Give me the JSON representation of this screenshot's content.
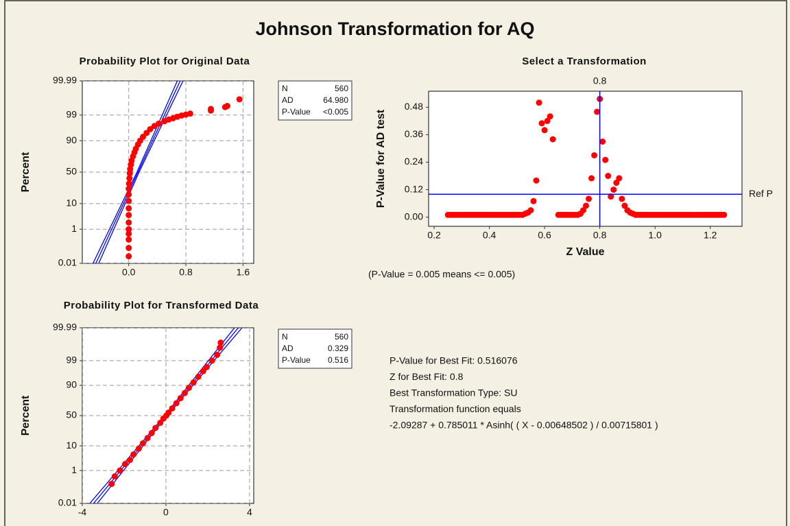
{
  "title": "Johnson Transformation for AQ",
  "chart_data": [
    {
      "type": "scatter",
      "title": "Probability Plot for Original Data",
      "ylabel": "Percent",
      "yscale": "probability",
      "grid": true,
      "xlim": [
        -0.65,
        1.75
      ],
      "ylim": [
        0.01,
        99.99
      ],
      "xticks": [
        {
          "value": 0,
          "label": "0.0"
        },
        0.8,
        1.6
      ],
      "yticks": [
        0.01,
        1,
        10,
        50,
        90,
        99,
        99.99
      ],
      "series": [
        {
          "color": "#ff0000",
          "x": [
            0,
            0,
            0,
            0,
            0,
            0,
            0,
            0,
            0,
            0,
            0,
            0.005,
            0.01,
            0.015,
            0.02,
            0.03,
            0.04,
            0.06,
            0.08,
            0.1,
            0.13,
            0.16,
            0.2,
            0.25,
            0.3,
            0.36,
            0.42,
            0.5,
            0.56,
            0.62,
            0.68,
            0.74,
            0.8,
            0.86,
            1.15,
            1.15,
            1.35,
            1.38,
            1.55
          ],
          "values": [
            0.03,
            0.1,
            0.3,
            0.6,
            1,
            2,
            4,
            7,
            12,
            18,
            25,
            32,
            40,
            48,
            55,
            62,
            68,
            74,
            79,
            83,
            87,
            90,
            92.5,
            94.5,
            96,
            97,
            97.6,
            98.1,
            98.4,
            98.6,
            98.8,
            98.95,
            99.05,
            99.15,
            99.4,
            99.5,
            99.6,
            99.65,
            99.85
          ]
        }
      ],
      "lines": [
        {
          "color": "#0000ff",
          "x": [
            -0.46,
            0.13,
            0.72
          ],
          "values": [
            0.01,
            50,
            99.99
          ]
        },
        {
          "color": "#0000ff",
          "x": [
            -0.42,
            0.145,
            0.76
          ],
          "values": [
            0.01,
            50,
            99.99
          ]
        },
        {
          "color": "#0000ff",
          "x": [
            -0.5,
            0.115,
            0.68
          ],
          "values": [
            0.01,
            50,
            99.99
          ]
        }
      ],
      "stats": [
        {
          "label": "N",
          "value": "560"
        },
        {
          "label": "AD",
          "value": "64.980"
        },
        {
          "label": "P-Value",
          "value": "<0.005"
        }
      ]
    },
    {
      "type": "scatter",
      "title": "Select a Transformation",
      "xlabel": "Z Value",
      "ylabel": "P-Value for AD test",
      "grid": false,
      "xlim": [
        0.18,
        1.315
      ],
      "ylim": [
        -0.04,
        0.55
      ],
      "xticks": [
        0.2,
        0.4,
        0.6,
        0.8,
        {
          "value": 1,
          "label": "1.0"
        },
        1.2
      ],
      "yticks": [
        {
          "value": 0,
          "label": "0.00"
        },
        0.12,
        0.24,
        0.36,
        0.48
      ],
      "ref_lines": [
        {
          "axis": "x",
          "value": 0.8,
          "color": "#0000ff"
        },
        {
          "axis": "y",
          "value": 0.1,
          "label": "Ref P",
          "color": "#0000ff"
        }
      ],
      "series": [
        {
          "color": "#ff0000",
          "x": [
            0.25,
            0.26,
            0.27,
            0.28,
            0.29,
            0.3,
            0.31,
            0.32,
            0.33,
            0.34,
            0.35,
            0.36,
            0.37,
            0.38,
            0.39,
            0.4,
            0.41,
            0.42,
            0.43,
            0.44,
            0.45,
            0.46,
            0.47,
            0.48,
            0.49,
            0.5,
            0.51,
            0.52,
            0.53,
            0.54,
            0.55,
            0.56,
            0.57,
            0.58,
            0.59,
            0.6,
            0.61,
            0.62,
            0.63,
            0.65,
            0.66,
            0.67,
            0.68,
            0.69,
            0.7,
            0.71,
            0.72,
            0.73,
            0.74,
            0.75,
            0.76,
            0.77,
            0.78,
            0.79,
            0.8,
            0.81,
            0.82,
            0.83,
            0.84,
            0.85,
            0.86,
            0.87,
            0.88,
            0.89,
            0.9,
            0.91,
            0.92,
            0.93,
            0.94,
            0.95,
            0.96,
            0.97,
            0.98,
            0.99,
            1,
            1.01,
            1.02,
            1.03,
            1.04,
            1.05,
            1.06,
            1.07,
            1.08,
            1.09,
            1.1,
            1.11,
            1.12,
            1.13,
            1.14,
            1.15,
            1.16,
            1.17,
            1.18,
            1.19,
            1.2,
            1.21,
            1.22,
            1.23,
            1.24,
            1.25
          ],
          "values": [
            0.01,
            0.01,
            0.01,
            0.01,
            0.01,
            0.01,
            0.01,
            0.01,
            0.01,
            0.01,
            0.01,
            0.01,
            0.01,
            0.01,
            0.01,
            0.01,
            0.01,
            0.01,
            0.01,
            0.01,
            0.01,
            0.01,
            0.01,
            0.01,
            0.01,
            0.01,
            0.01,
            0.01,
            0.015,
            0.02,
            0.03,
            0.07,
            0.16,
            0.5,
            0.41,
            0.38,
            0.42,
            0.44,
            0.34,
            0.01,
            0.01,
            0.01,
            0.01,
            0.01,
            0.01,
            0.01,
            0.01,
            0.015,
            0.03,
            0.05,
            0.08,
            0.17,
            0.27,
            0.46,
            0.516,
            0.33,
            0.25,
            0.18,
            0.09,
            0.12,
            0.15,
            0.17,
            0.08,
            0.05,
            0.03,
            0.02,
            0.015,
            0.01,
            0.01,
            0.01,
            0.01,
            0.01,
            0.01,
            0.01,
            0.01,
            0.01,
            0.01,
            0.01,
            0.01,
            0.01,
            0.01,
            0.01,
            0.01,
            0.01,
            0.01,
            0.01,
            0.01,
            0.01,
            0.01,
            0.01,
            0.01,
            0.01,
            0.01,
            0.01,
            0.01,
            0.01,
            0.01,
            0.01,
            0.01,
            0.01
          ]
        }
      ]
    },
    {
      "type": "scatter",
      "title": "Probability Plot for Transformed Data",
      "ylabel": "Percent",
      "yscale": "probability",
      "grid": true,
      "xlim": [
        -4,
        4.2
      ],
      "ylim": [
        0.01,
        99.99
      ],
      "xticks": [
        -4,
        0,
        4
      ],
      "yticks": [
        0.01,
        1,
        10,
        50,
        90,
        99,
        99.99
      ],
      "series": [
        {
          "color": "#ff0000",
          "x": [
            -2.6,
            -2.45,
            -2.2,
            -1.95,
            -1.72,
            -1.55,
            -1.3,
            -1.1,
            -0.88,
            -0.68,
            -0.5,
            -0.27,
            -0.12,
            0.02,
            0.13,
            0.3,
            0.5,
            0.7,
            0.9,
            1.1,
            1.32,
            1.55,
            1.78,
            1.95,
            2.2,
            2.45,
            2.58,
            2.62
          ],
          "values": [
            0.19,
            0.5,
            1,
            2,
            3,
            5,
            8,
            12,
            17,
            23,
            30,
            38,
            45,
            50,
            55,
            62,
            70,
            77,
            83,
            88,
            92,
            95,
            97,
            98,
            99,
            99.5,
            99.8,
            99.9
          ]
        }
      ],
      "lines": [
        {
          "color": "#0000ff",
          "x": [
            -3.46,
            0,
            3.46
          ],
          "values": [
            0.01,
            50,
            99.99
          ]
        },
        {
          "color": "#0000ff",
          "x": [
            -3.28,
            0.06,
            3.64
          ],
          "values": [
            0.01,
            50,
            99.99
          ]
        },
        {
          "color": "#0000ff",
          "x": [
            -3.64,
            -0.06,
            3.28
          ],
          "values": [
            0.01,
            50,
            99.99
          ]
        }
      ],
      "stats": [
        {
          "label": "N",
          "value": "560"
        },
        {
          "label": "AD",
          "value": "0.329"
        },
        {
          "label": "P-Value",
          "value": "0.516"
        }
      ]
    }
  ],
  "note": "(P-Value = 0.005 means <= 0.005)",
  "results": [
    "P-Value for Best Fit: 0.516076",
    "Z for Best Fit: 0.8",
    "Best Transformation Type: SU",
    "Transformation function equals",
    "-2.09287 + 0.785011 * Asinh( ( X - 0.00648502 ) / 0.00715801 )"
  ]
}
